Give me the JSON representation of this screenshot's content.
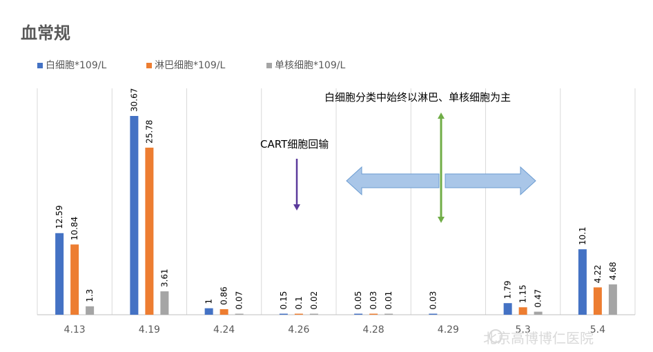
{
  "chart_data": {
    "type": "bar",
    "title": "血常规",
    "categories": [
      "4.13",
      "4.19",
      "4.24",
      "4.26",
      "4.28",
      "4.29",
      "5.3",
      "5.4"
    ],
    "series": [
      {
        "name": "白细胞*109/L",
        "color": "#4472C4",
        "values": [
          12.59,
          30.67,
          1,
          0.15,
          0.05,
          0.03,
          1.79,
          10.1
        ]
      },
      {
        "name": "淋巴细胞*109/L",
        "color": "#ED7D31",
        "values": [
          10.84,
          25.78,
          0.86,
          0.1,
          0.03,
          null,
          1.15,
          4.22
        ]
      },
      {
        "name": "单核细胞*109/L",
        "color": "#A5A5A5",
        "values": [
          1.3,
          3.61,
          0.07,
          0.02,
          0.01,
          null,
          0.47,
          4.68
        ]
      }
    ],
    "data_labels": [
      [
        "12.59",
        "30.67",
        "1",
        "0.15",
        "0.05",
        "0.03",
        "1.79",
        "10.1"
      ],
      [
        "10.84",
        "25.78",
        "0.86",
        "0.1",
        "0.03",
        "",
        "1.15",
        "4.22"
      ],
      [
        "1.3",
        "3.61",
        "0.07",
        "0.02",
        "0.01",
        "",
        "0.47",
        "4.68"
      ]
    ],
    "ylim": [
      0,
      32
    ],
    "grid": "vertical",
    "legend": "top-left"
  },
  "annotations": {
    "cart": "CART细胞回输",
    "note": "白细胞分类中始终以淋巴、单核细胞为主",
    "purple_color": "#5B3A9B",
    "green_color": "#70AD47",
    "arrow_fill": "#A9C6E8",
    "arrow_stroke": "#6A9BD1"
  },
  "watermark": "北京高博博仁医院"
}
